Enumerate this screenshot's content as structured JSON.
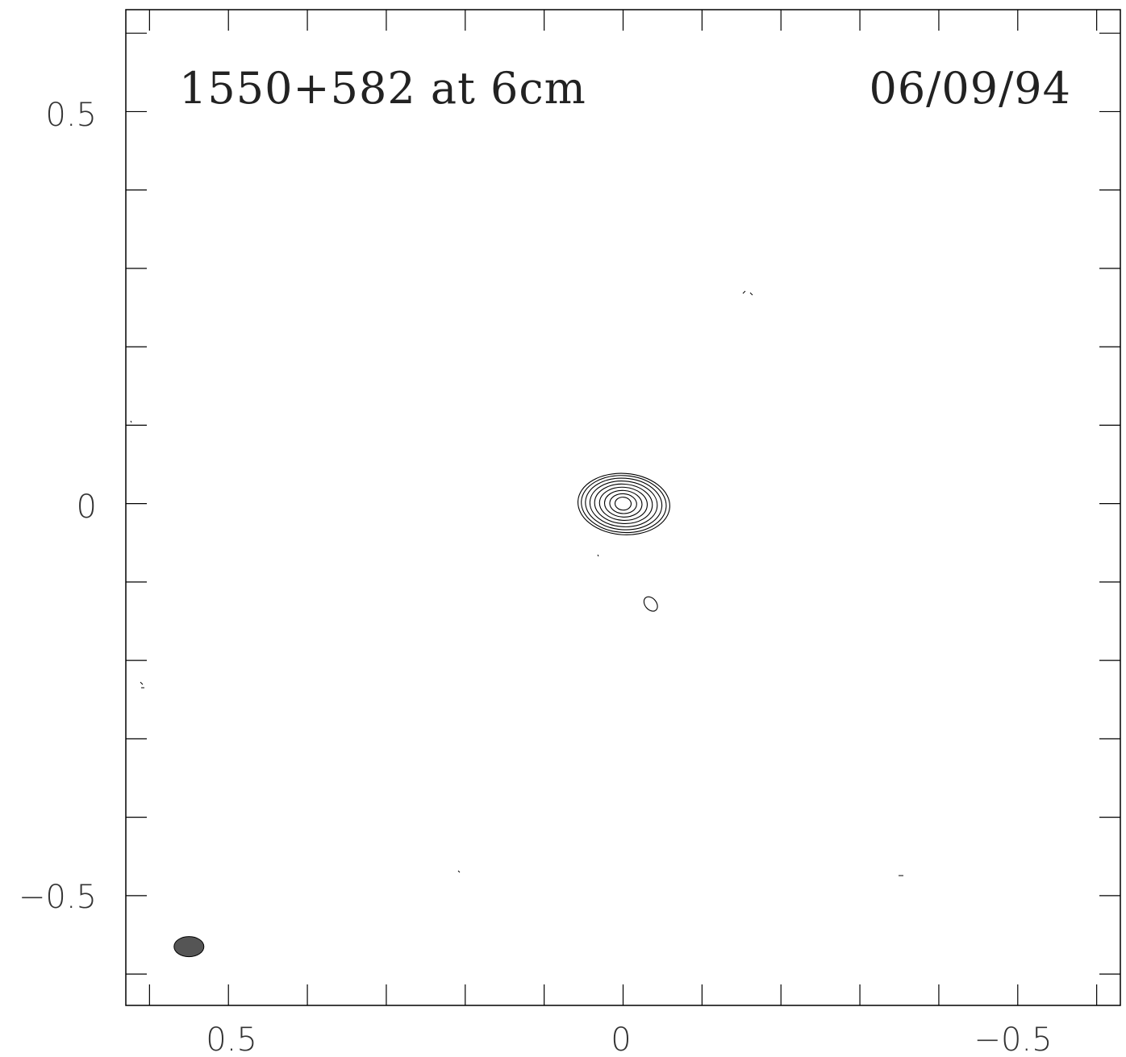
{
  "chart_data": {
    "type": "contour",
    "title": "1550+582 at 6cm",
    "date": "06/09/94",
    "xlim": [
      0.63,
      -0.63
    ],
    "ylim": [
      -0.64,
      0.63
    ],
    "x_reversed": true,
    "x_ticks": [
      0.5,
      0,
      -0.5
    ],
    "x_tick_labels": [
      "0.5",
      "0",
      "−0.5"
    ],
    "y_ticks": [
      0.5,
      0,
      -0.5
    ],
    "y_tick_labels": [
      "0.5",
      "0",
      "−0.5"
    ],
    "minor_tick_step": 0.1,
    "grid": false,
    "source_peak": {
      "x": 0.0,
      "y": 0.0,
      "contour_levels": 9
    },
    "secondary_component": {
      "x": -0.035,
      "y": -0.128
    },
    "beam": {
      "x": 0.55,
      "y": -0.565,
      "fill": "#555555"
    }
  }
}
